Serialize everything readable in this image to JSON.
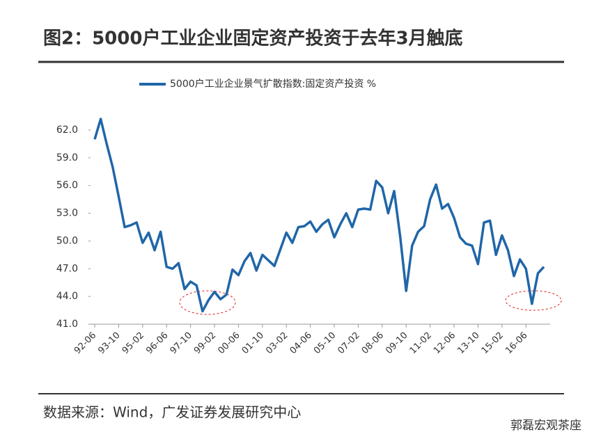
{
  "header": {
    "title": "图2：5000户工业企业固定资产投资于去年3月触底"
  },
  "chart_data": {
    "type": "line",
    "categories": [
      "92-06",
      null,
      null,
      null,
      "93-10",
      null,
      null,
      null,
      "95-02",
      null,
      null,
      null,
      "96-06",
      null,
      null,
      null,
      "97-10",
      null,
      null,
      null,
      "99-02",
      null,
      null,
      null,
      "00-06",
      null,
      null,
      null,
      "01-10",
      null,
      null,
      null,
      "03-02",
      null,
      null,
      null,
      "04-06",
      null,
      null,
      null,
      "05-10",
      null,
      null,
      null,
      "07-02",
      null,
      null,
      null,
      "08-06",
      null,
      null,
      null,
      "09-10",
      null,
      null,
      null,
      "11-02",
      null,
      null,
      null,
      "12-06",
      null,
      null,
      null,
      "13-10",
      null,
      null,
      null,
      "15-02",
      null,
      null,
      null,
      "16-06",
      null,
      null,
      null
    ],
    "series": [
      {
        "name": "5000户工业企业景气扩散指数:固定资产投资 %",
        "color": "#2066a8",
        "values": [
          61.0,
          63.2,
          60.5,
          58.0,
          54.8,
          51.5,
          51.7,
          52.0,
          49.8,
          50.9,
          49.0,
          51.0,
          47.2,
          47.0,
          47.6,
          44.8,
          45.6,
          45.2,
          42.4,
          43.6,
          44.5,
          43.7,
          44.2,
          46.9,
          46.3,
          47.8,
          48.7,
          46.8,
          48.5,
          47.9,
          47.3,
          49.1,
          50.9,
          49.8,
          51.5,
          51.6,
          52.1,
          51.0,
          51.8,
          52.3,
          50.4,
          51.8,
          53.0,
          51.5,
          53.4,
          53.5,
          53.4,
          56.5,
          55.8,
          53.0,
          55.4,
          50.5,
          44.6,
          49.5,
          51.0,
          51.6,
          54.5,
          56.1,
          53.5,
          54.0,
          52.5,
          50.4,
          49.7,
          49.5,
          47.5,
          52.0,
          52.2,
          48.5,
          50.6,
          49.0,
          46.2,
          48.0,
          47.0,
          43.2,
          46.5,
          47.2
        ]
      }
    ],
    "ylim": [
      41,
      63.5
    ],
    "yticks": [
      {
        "value": 41,
        "label": "41.0"
      },
      {
        "value": 44,
        "label": "44.0"
      },
      {
        "value": 47,
        "label": "47.0"
      },
      {
        "value": 50,
        "label": "50.0"
      },
      {
        "value": 53,
        "label": "53.0"
      },
      {
        "value": 56,
        "label": "56.0"
      },
      {
        "value": 59,
        "label": "59.0"
      },
      {
        "value": 62,
        "label": "62.0"
      }
    ],
    "grid": false
  },
  "footer": {
    "source": "数据来源：Wind，广发证券发展研究中心",
    "watermark": "郭磊宏观茶座"
  }
}
